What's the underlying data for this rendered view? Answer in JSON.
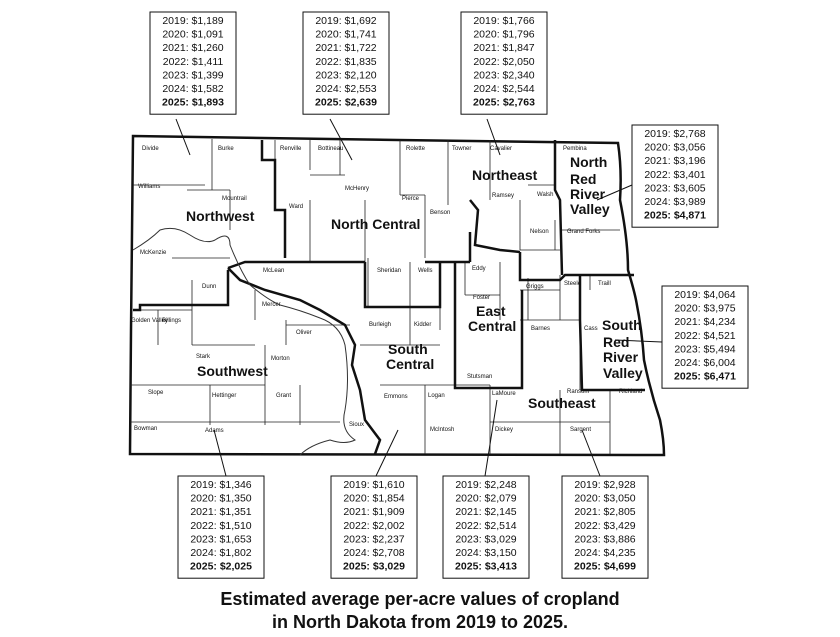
{
  "title_line1": "Estimated average per-acre values of cropland",
  "title_line2": "in North Dakota from 2019 to 2025.",
  "regions": [
    {
      "id": "northwest",
      "lines": [
        "Northwest"
      ]
    },
    {
      "id": "north_central",
      "lines": [
        "North Central"
      ]
    },
    {
      "id": "northeast",
      "lines": [
        "Northeast"
      ]
    },
    {
      "id": "north_red_river_valley",
      "lines": [
        "North",
        "Red",
        "River",
        "Valley"
      ]
    },
    {
      "id": "southwest",
      "lines": [
        "Southwest"
      ]
    },
    {
      "id": "south_central",
      "lines": [
        "South",
        "Central"
      ]
    },
    {
      "id": "east_central",
      "lines": [
        "East",
        "Central"
      ]
    },
    {
      "id": "southeast",
      "lines": [
        "Southeast"
      ]
    },
    {
      "id": "south_red_river_valley",
      "lines": [
        "South",
        "Red",
        "River",
        "Valley"
      ]
    }
  ],
  "values": [
    {
      "region": "northwest",
      "lines": [
        "2019: $1,189",
        "2020: $1,091",
        "2021: $1,260",
        "2022: $1,411",
        "2023: $1,399",
        "2024: $1,582",
        "2025: $1,893"
      ]
    },
    {
      "region": "north_central",
      "lines": [
        "2019: $1,692",
        "2020: $1,741",
        "2021: $1,722",
        "2022: $1,835",
        "2023: $2,120",
        "2024: $2,553",
        "2025: $2,639"
      ]
    },
    {
      "region": "northeast",
      "lines": [
        "2019: $1,766",
        "2020: $1,796",
        "2021: $1,847",
        "2022: $2,050",
        "2023: $2,340",
        "2024: $2,544",
        "2025: $2,763"
      ]
    },
    {
      "region": "north_red_river_valley",
      "lines": [
        "2019: $2,768",
        "2020: $3,056",
        "2021: $3,196",
        "2022: $3,401",
        "2023: $3,605",
        "2024: $3,989",
        "2025: $4,871"
      ]
    },
    {
      "region": "south_red_river_valley",
      "lines": [
        "2019: $4,064",
        "2020: $3,975",
        "2021: $4,234",
        "2022: $4,521",
        "2023: $5,494",
        "2024: $6,004",
        "2025: $6,471"
      ]
    },
    {
      "region": "southwest",
      "lines": [
        "2019: $1,346",
        "2020: $1,350",
        "2021: $1,351",
        "2022: $1,510",
        "2023: $1,653",
        "2024: $1,802",
        "2025: $2,025"
      ]
    },
    {
      "region": "south_central",
      "lines": [
        "2019: $1,610",
        "2020: $1,854",
        "2021: $1,909",
        "2022: $2,002",
        "2023: $2,237",
        "2024: $2,708",
        "2025: $3,029"
      ]
    },
    {
      "region": "east_central",
      "lines": [
        "2019: $2,248",
        "2020: $2,079",
        "2021: $2,145",
        "2022: $2,514",
        "2023: $3,029",
        "2024: $3,150",
        "2025: $3,413"
      ]
    },
    {
      "region": "southeast",
      "lines": [
        "2019: $2,928",
        "2020: $3,050",
        "2021: $2,805",
        "2022: $3,429",
        "2023: $3,886",
        "2024: $4,235",
        "2025: $4,699"
      ]
    }
  ],
  "counties": [
    "Divide",
    "Burke",
    "Renville",
    "Bottineau",
    "Rolette",
    "Towner",
    "Cavalier",
    "Pembina",
    "Williams",
    "Mountrail",
    "Ward",
    "McHenry",
    "Pierce",
    "Benson",
    "Ramsey",
    "Walsh",
    "Nelson",
    "Grand Forks",
    "McKenzie",
    "McLean",
    "Sheridan",
    "Wells",
    "Eddy",
    "Foster",
    "Griggs",
    "Steele",
    "Traill",
    "Dunn",
    "Mercer",
    "Oliver",
    "Burleigh",
    "Kidder",
    "Stutsman",
    "Barnes",
    "Cass",
    "Golden Valley",
    "Billings",
    "Stark",
    "Morton",
    "Slope",
    "Hettinger",
    "Grant",
    "Emmons",
    "Logan",
    "LaMoure",
    "Ransom",
    "Richland",
    "Bowman",
    "Adams",
    "Sioux",
    "McIntosh",
    "Dickey",
    "Sargent"
  ]
}
